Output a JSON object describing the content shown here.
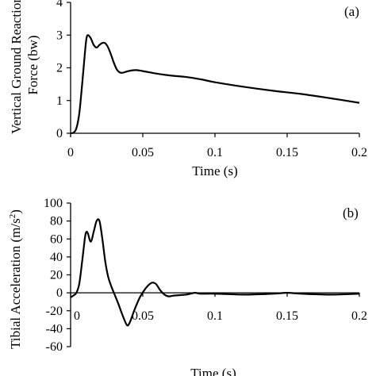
{
  "chart_data": [
    {
      "type": "line",
      "panel_label": "(a)",
      "xlabel": "Time (s)",
      "ylabel_lines": [
        "Vertical Ground Reaction",
        "Force (bw)"
      ],
      "xlim": [
        0,
        0.2
      ],
      "ylim": [
        0,
        4
      ],
      "xticks": [
        0,
        0.05,
        0.1,
        0.15,
        0.2
      ],
      "xtick_labels": [
        "0",
        "0.05",
        "0.1",
        "0.15",
        "0.2"
      ],
      "yticks": [
        0,
        1,
        2,
        3,
        4
      ],
      "ytick_labels": [
        "0",
        "1",
        "2",
        "3",
        "4"
      ],
      "grid": false,
      "line_color": "#000000",
      "series": [
        {
          "x": [
            0,
            0.002,
            0.004,
            0.006,
            0.008,
            0.01,
            0.011,
            0.012,
            0.014,
            0.016,
            0.018,
            0.02,
            0.022,
            0.024,
            0.026,
            0.028,
            0.03,
            0.032,
            0.034,
            0.036,
            0.04,
            0.045,
            0.05,
            0.06,
            0.07,
            0.08,
            0.09,
            0.1,
            0.12,
            0.14,
            0.16,
            0.18,
            0.2
          ],
          "y": [
            0,
            0.02,
            0.15,
            0.6,
            1.5,
            2.5,
            2.9,
            3.0,
            2.9,
            2.7,
            2.62,
            2.7,
            2.76,
            2.75,
            2.62,
            2.4,
            2.15,
            1.95,
            1.86,
            1.85,
            1.9,
            1.93,
            1.9,
            1.82,
            1.76,
            1.72,
            1.65,
            1.56,
            1.42,
            1.3,
            1.2,
            1.07,
            0.93
          ]
        }
      ]
    },
    {
      "type": "line",
      "panel_label": "(b)",
      "xlabel": "Time (s)",
      "ylabel": "Tibial Acceleration (m/s",
      "ylabel_sup": "2",
      "ylabel_end": ")",
      "xlim": [
        0,
        0.2
      ],
      "ylim": [
        -60,
        100
      ],
      "xticks": [
        0.05,
        0.1,
        0.15,
        0.2
      ],
      "xtick_labels": [
        "0.05",
        "0.1",
        "0.15",
        "0.2"
      ],
      "x_zero_label": "0",
      "yticks": [
        -60,
        -40,
        -20,
        0,
        20,
        40,
        60,
        80,
        100
      ],
      "ytick_labels": [
        "-60",
        "-40",
        "-20",
        "0",
        "20",
        "40",
        "60",
        "80",
        "100"
      ],
      "grid": false,
      "line_color": "#000000",
      "series": [
        {
          "x": [
            0,
            0.002,
            0.004,
            0.006,
            0.008,
            0.01,
            0.011,
            0.012,
            0.014,
            0.016,
            0.018,
            0.02,
            0.022,
            0.024,
            0.026,
            0.028,
            0.03,
            0.033,
            0.036,
            0.039,
            0.041,
            0.044,
            0.048,
            0.052,
            0.056,
            0.059,
            0.062,
            0.065,
            0.068,
            0.072,
            0.08,
            0.086,
            0.09,
            0.1,
            0.12,
            0.14,
            0.15,
            0.16,
            0.18,
            0.2
          ],
          "y": [
            -5,
            -3,
            0,
            10,
            35,
            62,
            68,
            66,
            57,
            68,
            80,
            80,
            60,
            35,
            18,
            8,
            0,
            -12,
            -25,
            -36,
            -33,
            -20,
            -5,
            5,
            11,
            10,
            3,
            -2,
            -4,
            -3,
            -2,
            0,
            -1,
            -1,
            -2,
            -1,
            0,
            -1,
            -2,
            -1
          ]
        }
      ]
    }
  ]
}
